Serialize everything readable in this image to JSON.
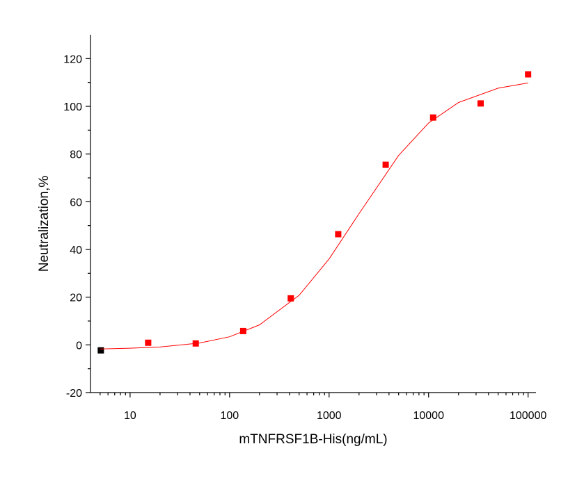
{
  "chart_data": {
    "type": "scatter",
    "xlabel": "mTNFRSF1B-His(ng/mL)",
    "ylabel": "Neutralization,%",
    "xscale": "log",
    "xlim": [
      4,
      120000
    ],
    "xticks": [
      10,
      100,
      1000,
      10000,
      100000
    ],
    "ylim": [
      -20,
      130
    ],
    "yticks": [
      -20,
      0,
      20,
      40,
      60,
      80,
      100,
      120
    ],
    "grid": false,
    "series": [
      {
        "type": "scatter",
        "color": "#ff0000",
        "point_colors": [
          "#000000",
          "#ff0000",
          "#ff0000",
          "#ff0000",
          "#ff0000",
          "#ff0000",
          "#ff0000",
          "#ff0000",
          "#ff0000",
          "#ff0000"
        ],
        "x": [
          5.08,
          15.2,
          45.7,
          137,
          412,
          1235,
          3704,
          11111,
          33333,
          100000
        ],
        "values": [
          -2.3,
          0.9,
          0.6,
          5.8,
          19.5,
          46.4,
          75.5,
          95.3,
          101.2,
          113.4
        ]
      },
      {
        "type": "line",
        "color": "#ff0000",
        "x": [
          5,
          10,
          20,
          50,
          100,
          200,
          500,
          1000,
          2000,
          5000,
          10000,
          20000,
          50000,
          100000
        ],
        "values": [
          -1.7,
          -1.4,
          -0.9,
          0.8,
          3.4,
          8.4,
          20.8,
          36.0,
          55.0,
          79.4,
          93.0,
          101.6,
          107.6,
          109.8
        ]
      }
    ]
  }
}
